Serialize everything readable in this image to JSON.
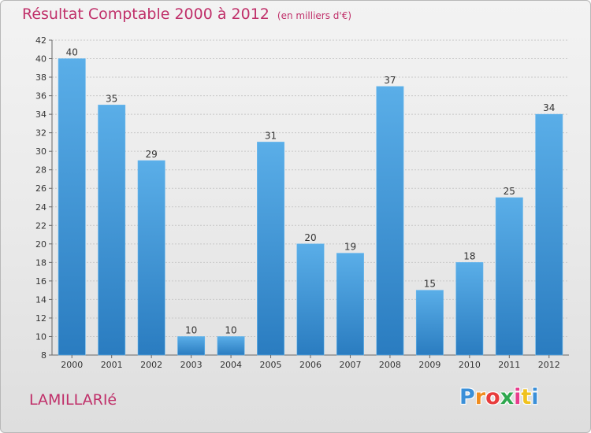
{
  "chart_data": {
    "type": "bar",
    "title": "Résultat Comptable 2000 à 2012",
    "unit": "(en milliers d'€)",
    "categories": [
      "2000",
      "2001",
      "2002",
      "2003",
      "2004",
      "2005",
      "2006",
      "2007",
      "2008",
      "2009",
      "2010",
      "2011",
      "2012"
    ],
    "values": [
      40,
      35,
      29,
      10,
      10,
      31,
      20,
      19,
      37,
      15,
      18,
      25,
      34
    ],
    "ylim": [
      8,
      42
    ],
    "yticks": [
      8,
      10,
      12,
      14,
      16,
      18,
      20,
      22,
      24,
      26,
      28,
      30,
      32,
      34,
      36,
      38,
      40,
      42
    ],
    "grid": true,
    "xlabel": "",
    "ylabel": ""
  },
  "commune": "LAMILLARIé",
  "logo": {
    "letters": [
      "P",
      "r",
      "o",
      "x",
      "i",
      "t",
      "i"
    ],
    "colors": [
      "#3a8fd8",
      "#f08c1e",
      "#e83c3c",
      "#2fa84f",
      "#e83c8c",
      "#f0c21e",
      "#3a8fd8"
    ]
  },
  "colors": {
    "bar_top": "#5aaee8",
    "bar_bottom": "#2a7cc0",
    "accent": "#c0306a"
  }
}
